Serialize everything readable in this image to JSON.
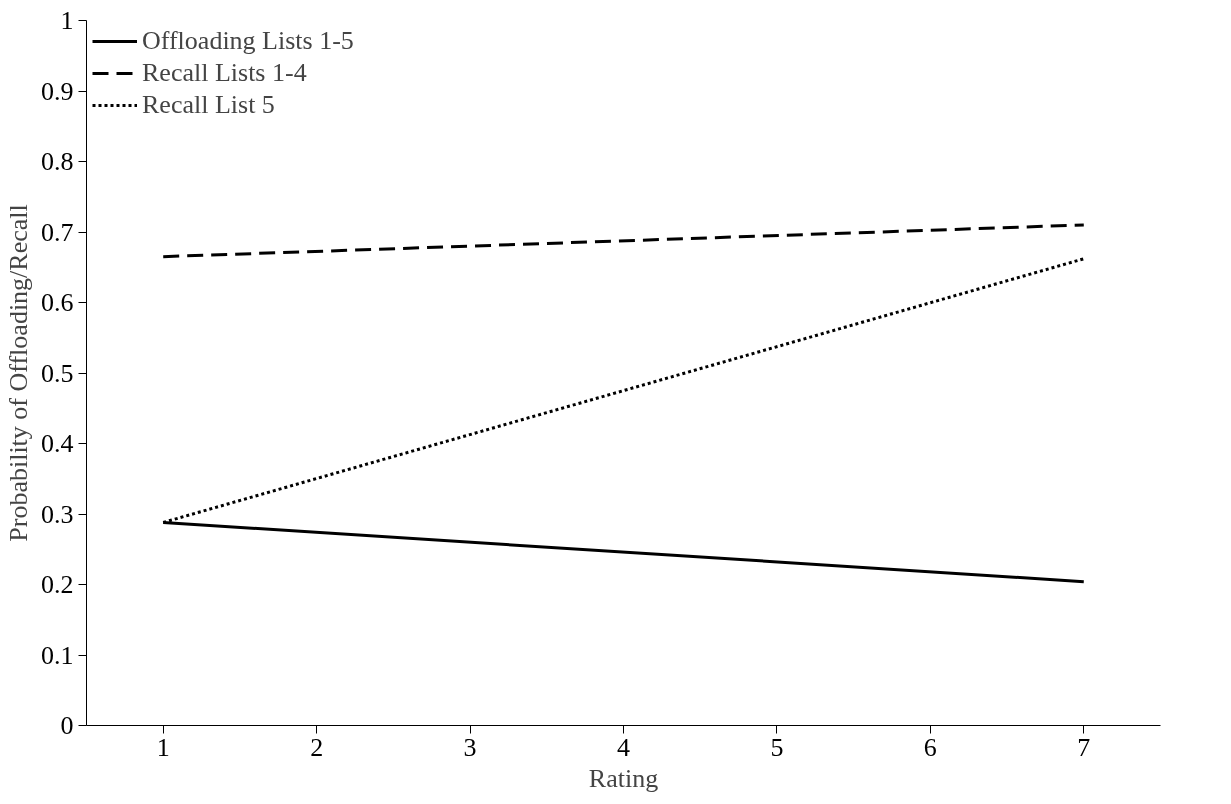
{
  "chart_data": {
    "type": "line",
    "xlabel": "Rating",
    "ylabel": "Probability of Offloading/Recall",
    "x": [
      1,
      7
    ],
    "xlim": [
      0.5,
      7.5
    ],
    "xticks": [
      1,
      2,
      3,
      4,
      5,
      6,
      7
    ],
    "ylim": [
      0,
      1
    ],
    "yticks": [
      0,
      0.1,
      0.2,
      0.3,
      0.4,
      0.5,
      0.6,
      0.7,
      0.8,
      0.9,
      1
    ],
    "grid": false,
    "legend": "top left",
    "marker": "none",
    "series": [
      {
        "name": "Offloading Lists 1-5",
        "color": "#000000",
        "line_style": "solid",
        "values": [
          0.288,
          0.204
        ]
      },
      {
        "name": "Recall Lists 1-4",
        "color": "#000000",
        "line_style": "dashed",
        "values": [
          0.665,
          0.71
        ]
      },
      {
        "name": "Recall List 5",
        "color": "#000000",
        "line_style": "dotted",
        "values": [
          0.288,
          0.662
        ]
      }
    ]
  }
}
